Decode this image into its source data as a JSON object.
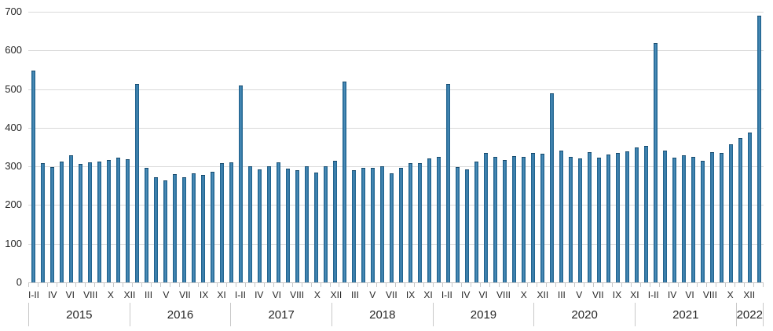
{
  "chart_data": {
    "type": "bar",
    "title": "",
    "xlabel": "",
    "ylabel": "",
    "ylim": [
      0,
      700
    ],
    "yticks": [
      0,
      100,
      200,
      300,
      400,
      500,
      600,
      700
    ],
    "grid": "horizontal",
    "legend_position": "none",
    "bar_color": "#2e75a3",
    "grid_color": "#d9d9d9",
    "groups": [
      {
        "year": "2015",
        "months": [
          "I-II",
          "III",
          "IV",
          "V",
          "VI",
          "VII",
          "VIII",
          "IX",
          "X",
          "XI",
          "XII"
        ],
        "tick_labels": [
          "I-II",
          "",
          "IV",
          "",
          "VI",
          "",
          "VIII",
          "",
          "X",
          "",
          "XII"
        ],
        "values": [
          546,
          306,
          296,
          310,
          327,
          305,
          308,
          311,
          314,
          320,
          316
        ]
      },
      {
        "year": "2016",
        "months": [
          "I-II",
          "III",
          "IV",
          "V",
          "VI",
          "VII",
          "VIII",
          "IX",
          "X",
          "XI",
          "XII"
        ],
        "tick_labels": [
          "",
          "III",
          "",
          "V",
          "",
          "VII",
          "",
          "IX",
          "",
          "XI",
          ""
        ],
        "values": [
          512,
          295,
          269,
          262,
          279,
          270,
          280,
          276,
          284,
          306,
          308
        ]
      },
      {
        "year": "2017",
        "months": [
          "I-II",
          "III",
          "IV",
          "V",
          "VI",
          "VII",
          "VIII",
          "IX",
          "X",
          "XI",
          "XII"
        ],
        "tick_labels": [
          "I-II",
          "",
          "IV",
          "",
          "VI",
          "",
          "VIII",
          "",
          "X",
          "",
          "XII"
        ],
        "values": [
          507,
          299,
          291,
          298,
          308,
          293,
          288,
          299,
          282,
          298,
          313
        ]
      },
      {
        "year": "2018",
        "months": [
          "I-II",
          "III",
          "IV",
          "V",
          "VI",
          "VII",
          "VIII",
          "IX",
          "X",
          "XI",
          "XII"
        ],
        "tick_labels": [
          "",
          "III",
          "",
          "V",
          "",
          "VII",
          "",
          "IX",
          "",
          "XI",
          ""
        ],
        "values": [
          517,
          289,
          294,
          295,
          299,
          280,
          295,
          306,
          306,
          318,
          323
        ]
      },
      {
        "year": "2019",
        "months": [
          "I-II",
          "III",
          "IV",
          "V",
          "VI",
          "VII",
          "VIII",
          "IX",
          "X",
          "XI",
          "XII"
        ],
        "tick_labels": [
          "I-II",
          "",
          "IV",
          "",
          "VI",
          "",
          "VIII",
          "",
          "X",
          "",
          "XII"
        ],
        "values": [
          512,
          297,
          291,
          311,
          333,
          322,
          315,
          325,
          323,
          333,
          330
        ]
      },
      {
        "year": "2020",
        "months": [
          "I-II",
          "III",
          "IV",
          "V",
          "VI",
          "VII",
          "VIII",
          "IX",
          "X",
          "XI",
          "XII"
        ],
        "tick_labels": [
          "",
          "III",
          "",
          "V",
          "",
          "VII",
          "",
          "IX",
          "",
          "XI",
          ""
        ],
        "values": [
          488,
          339,
          323,
          318,
          335,
          320,
          328,
          332,
          337,
          348,
          352
        ]
      },
      {
        "year": "2021",
        "months": [
          "I-II",
          "III",
          "IV",
          "V",
          "VI",
          "VII",
          "VIII",
          "IX",
          "X",
          "XI",
          "XII"
        ],
        "tick_labels": [
          "I-II",
          "",
          "IV",
          "",
          "VI",
          "",
          "VIII",
          "",
          "X",
          "",
          "XII"
        ],
        "values": [
          617,
          338,
          320,
          327,
          322,
          313,
          335,
          332,
          356,
          371,
          386
        ]
      },
      {
        "year": "2022",
        "months": [
          "I-II"
        ],
        "tick_labels": [
          ""
        ],
        "values": [
          687
        ]
      }
    ]
  }
}
